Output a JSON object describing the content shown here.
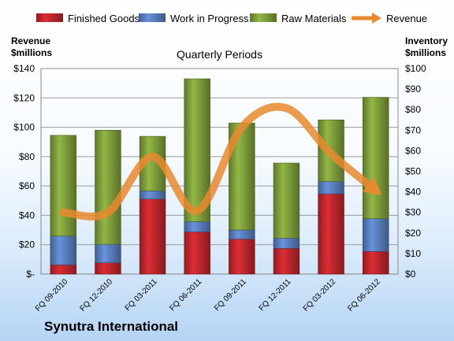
{
  "company": "Synutra International",
  "chart_data": {
    "type": "bar",
    "stacked": true,
    "title": "Quarterly Periods",
    "categories": [
      "FQ 09-2010",
      "FQ 12-2010",
      "FQ 03-2011",
      "FQ 06-2011",
      "FQ 09-2011",
      "FQ 12-2011",
      "FQ 03-2012",
      "FQ 06-2012"
    ],
    "series": [
      {
        "name": "Finished Goods",
        "color": "#c0262d",
        "axis": "right",
        "values": [
          4.5,
          5.5,
          36.5,
          20.5,
          17,
          12.5,
          39,
          11
        ]
      },
      {
        "name": "Work in Progress",
        "color": "#5a7fbf",
        "axis": "right",
        "values": [
          14,
          9,
          4,
          5,
          4.5,
          5,
          6,
          16
        ]
      },
      {
        "name": "Raw Materials",
        "color": "#7f9f3c",
        "axis": "right",
        "values": [
          49,
          55.5,
          26.5,
          69.5,
          52,
          36.5,
          30,
          59
        ]
      },
      {
        "name": "Revenue",
        "color": "#e98a2f",
        "axis": "left",
        "type": "line",
        "values": [
          42,
          42,
          80,
          43,
          100,
          113,
          82,
          57
        ]
      }
    ],
    "ylabel_left": "Revenue\n$millions",
    "ylabel_right": "Inventory\n$millions",
    "ylim_left": [
      0,
      140
    ],
    "ylim_right": [
      0,
      100
    ],
    "yticks_left": [
      "$-",
      "$20",
      "$40",
      "$60",
      "$80",
      "$100",
      "$120",
      "$140"
    ],
    "yticks_right": [
      "$0",
      "$10",
      "$20",
      "$30",
      "$40",
      "$50",
      "$60",
      "$70",
      "$80",
      "$90",
      "$100"
    ],
    "legend_position": "top",
    "grid": true
  }
}
